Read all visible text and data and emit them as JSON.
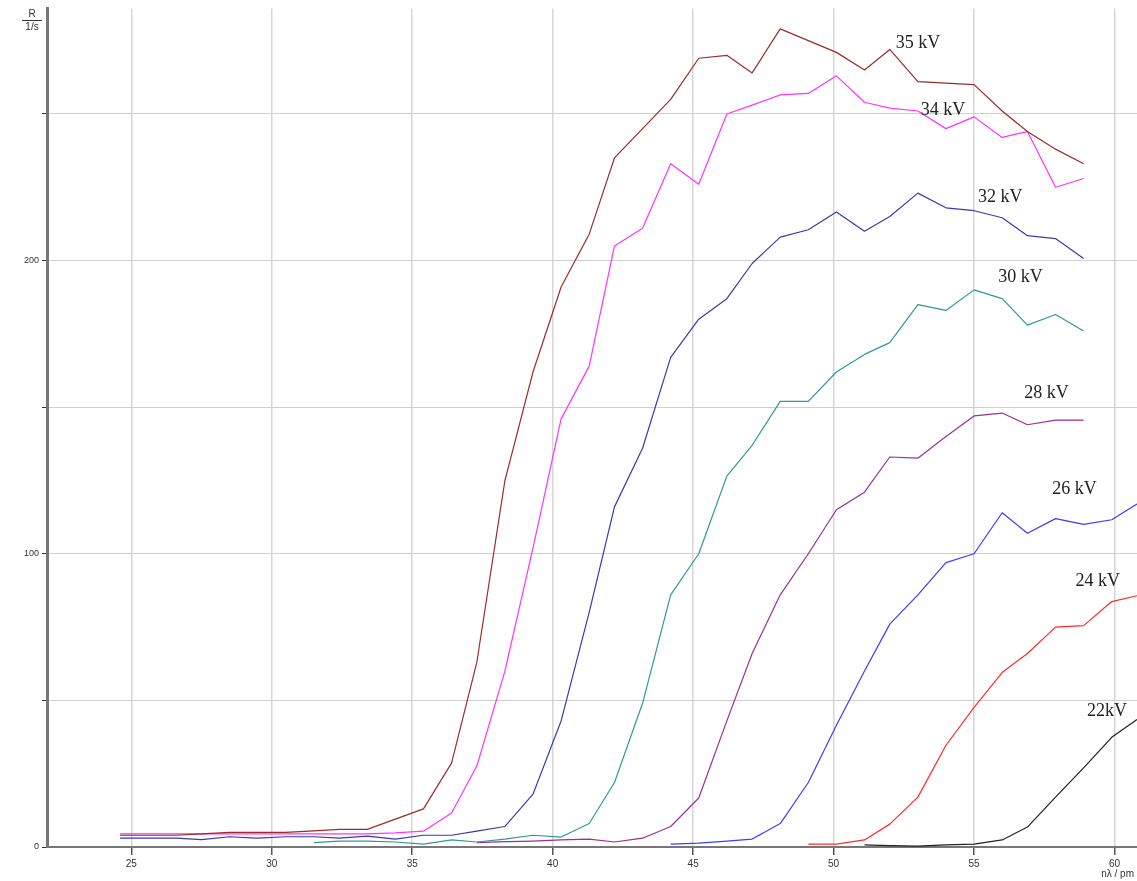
{
  "chart_data": {
    "type": "line",
    "xlabel": "nλ / pm",
    "ylabel": "R\n1/s",
    "xlim": [
      22,
      60.8
    ],
    "xticks": [
      25,
      30,
      35,
      40,
      45,
      50,
      55,
      60
    ],
    "ylim": [
      0,
      286
    ],
    "yticks": [
      0,
      {
        "value": 50,
        "label": null
      },
      100,
      {
        "value": 150,
        "label": null
      },
      200,
      {
        "value": 250,
        "label": null
      }
    ],
    "grid": true,
    "legend": false,
    "marker": "none",
    "line_style": "solid",
    "x": [
      24.6,
      25.6,
      26.6,
      27.5,
      28.5,
      29.5,
      30.5,
      31.5,
      32.4,
      33.4,
      34.4,
      35.4,
      36.4,
      37.3,
      38.3,
      39.3,
      40.3,
      41.3,
      42.2,
      43.2,
      44.2,
      45.2,
      46.2,
      47.1,
      48.1,
      49.1,
      50.1,
      51.1,
      52.0,
      53.0,
      54.0,
      55.0,
      56.0,
      56.9,
      57.9,
      58.9,
      59.9,
      60.8
    ],
    "series": [
      {
        "name": "35 kV",
        "color": "#9b2c2c",
        "values": [
          4,
          4,
          4,
          4.5,
          5,
          5,
          5,
          5.5,
          6,
          6,
          9.5,
          13,
          28.6,
          63,
          125,
          162,
          191,
          209,
          235,
          245,
          255,
          269,
          270,
          264,
          279,
          275,
          271,
          265,
          272,
          261,
          260.5,
          260,
          251,
          244,
          238,
          233,
          null,
          null
        ]
      },
      {
        "name": "34 kV",
        "color": "#ff33ff",
        "values": [
          4.5,
          4.5,
          4.5,
          4.5,
          4.5,
          4.5,
          4.5,
          4.5,
          4.5,
          4.5,
          4.8,
          5.4,
          11.6,
          27.6,
          60,
          102,
          146,
          164,
          205,
          211,
          233,
          226,
          250,
          253,
          256.5,
          257,
          263,
          254,
          252,
          251,
          245,
          249,
          242,
          244,
          225,
          228,
          null,
          null
        ]
      },
      {
        "name": "32 kV",
        "color": "#3a3aa8",
        "values": [
          3,
          3,
          3,
          2.5,
          3.5,
          3,
          3.5,
          3.5,
          3,
          3.7,
          2.7,
          4,
          4,
          5.4,
          7,
          18,
          43,
          80,
          116,
          136,
          167,
          180,
          187,
          199,
          208,
          210.5,
          216.6,
          210,
          215,
          223,
          218,
          217,
          214.6,
          208.5,
          207.5,
          200.7,
          null,
          null
        ]
      },
      {
        "name": "30 kV",
        "color": "#2e9a94",
        "values": [
          null,
          null,
          null,
          null,
          null,
          null,
          null,
          1.5,
          2,
          2,
          1.7,
          1,
          2.4,
          1.7,
          2.7,
          4,
          3.4,
          8,
          22,
          49,
          86,
          100,
          126.5,
          137,
          152,
          152,
          162,
          168,
          172,
          185,
          183,
          190,
          187,
          178,
          181.6,
          176,
          null,
          null
        ]
      },
      {
        "name": "28 kV",
        "color": "#9a2e9a",
        "values": [
          null,
          null,
          null,
          null,
          null,
          null,
          null,
          null,
          null,
          null,
          null,
          null,
          null,
          1.5,
          1.8,
          2,
          2.4,
          2.7,
          1.7,
          3,
          7,
          16.7,
          43,
          66,
          86,
          100,
          115,
          121,
          133,
          132.6,
          140,
          147,
          148,
          144,
          145.6,
          145.6,
          null,
          null
        ]
      },
      {
        "name": "26 kV",
        "color": "#3c3cff",
        "values": [
          null,
          null,
          null,
          null,
          null,
          null,
          null,
          null,
          null,
          null,
          null,
          null,
          null,
          null,
          null,
          null,
          null,
          null,
          null,
          null,
          1,
          1.3,
          2,
          2.7,
          8,
          22,
          41.5,
          60,
          76,
          86,
          97,
          100,
          114,
          107,
          112,
          110,
          111.6,
          117
        ]
      },
      {
        "name": "24 kV",
        "color": "#ff2a2a",
        "values": [
          null,
          null,
          null,
          null,
          null,
          null,
          null,
          null,
          null,
          null,
          null,
          null,
          null,
          null,
          null,
          null,
          null,
          null,
          null,
          null,
          null,
          null,
          null,
          null,
          null,
          1,
          1,
          2.4,
          7.8,
          17,
          34.7,
          47.6,
          59.5,
          66,
          75,
          75.5,
          83.7,
          85.7
        ]
      },
      {
        "name": "22kV",
        "color": "#222222",
        "values": [
          null,
          null,
          null,
          null,
          null,
          null,
          null,
          null,
          null,
          null,
          null,
          null,
          null,
          null,
          null,
          null,
          null,
          null,
          null,
          null,
          null,
          null,
          null,
          null,
          null,
          null,
          null,
          0.7,
          0.5,
          0.3,
          0.7,
          1,
          2.4,
          6.8,
          17,
          27,
          37.4,
          43.5
        ]
      }
    ]
  }
}
